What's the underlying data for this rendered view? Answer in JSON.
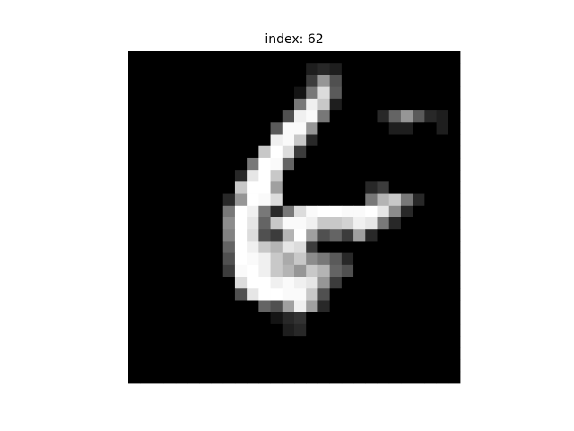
{
  "chart_data": {
    "type": "image",
    "title": "index: 62",
    "colormap": "gray",
    "values": [
      [
        0,
        0,
        0,
        0,
        0,
        0,
        0,
        0,
        0,
        0,
        0,
        0,
        0,
        0,
        0,
        0,
        0,
        0,
        0,
        0,
        0,
        0,
        0,
        0,
        0,
        0,
        0,
        0
      ],
      [
        0,
        0,
        0,
        0,
        0,
        0,
        0,
        0,
        0,
        0,
        0,
        0,
        0,
        0,
        0,
        30,
        40,
        30,
        0,
        0,
        0,
        0,
        0,
        0,
        0,
        0,
        0,
        0
      ],
      [
        0,
        0,
        0,
        0,
        0,
        0,
        0,
        0,
        0,
        0,
        0,
        0,
        0,
        0,
        0,
        60,
        150,
        80,
        0,
        0,
        0,
        0,
        0,
        0,
        0,
        0,
        0,
        0
      ],
      [
        0,
        0,
        0,
        0,
        0,
        0,
        0,
        0,
        0,
        0,
        0,
        0,
        0,
        0,
        20,
        120,
        220,
        90,
        0,
        0,
        0,
        0,
        0,
        0,
        0,
        0,
        0,
        0
      ],
      [
        0,
        0,
        0,
        0,
        0,
        0,
        0,
        0,
        0,
        0,
        0,
        0,
        0,
        0,
        120,
        240,
        200,
        30,
        0,
        0,
        0,
        0,
        0,
        0,
        0,
        0,
        0,
        0
      ],
      [
        0,
        0,
        0,
        0,
        0,
        0,
        0,
        0,
        0,
        0,
        0,
        0,
        0,
        80,
        240,
        250,
        120,
        0,
        0,
        0,
        0,
        40,
        100,
        150,
        90,
        40,
        30,
        0
      ],
      [
        0,
        0,
        0,
        0,
        0,
        0,
        0,
        0,
        0,
        0,
        0,
        0,
        90,
        250,
        250,
        150,
        0,
        0,
        0,
        0,
        0,
        0,
        30,
        30,
        0,
        0,
        30,
        0
      ],
      [
        0,
        0,
        0,
        0,
        0,
        0,
        0,
        0,
        0,
        0,
        0,
        0,
        240,
        250,
        200,
        40,
        0,
        0,
        0,
        0,
        0,
        0,
        0,
        0,
        0,
        0,
        0,
        0
      ],
      [
        0,
        0,
        0,
        0,
        0,
        0,
        0,
        0,
        0,
        0,
        0,
        200,
        255,
        220,
        60,
        0,
        0,
        0,
        0,
        0,
        0,
        0,
        0,
        0,
        0,
        0,
        0,
        0
      ],
      [
        0,
        0,
        0,
        0,
        0,
        0,
        0,
        0,
        0,
        0,
        120,
        255,
        250,
        100,
        0,
        0,
        0,
        0,
        0,
        0,
        0,
        0,
        0,
        0,
        0,
        0,
        0,
        0
      ],
      [
        0,
        0,
        0,
        0,
        0,
        0,
        0,
        0,
        0,
        40,
        230,
        255,
        200,
        0,
        0,
        0,
        0,
        0,
        0,
        0,
        0,
        0,
        0,
        0,
        0,
        0,
        0,
        0
      ],
      [
        0,
        0,
        0,
        0,
        0,
        0,
        0,
        0,
        0,
        200,
        255,
        255,
        160,
        0,
        0,
        0,
        0,
        0,
        0,
        0,
        40,
        60,
        0,
        0,
        0,
        0,
        0,
        0
      ],
      [
        0,
        0,
        0,
        0,
        0,
        0,
        0,
        0,
        40,
        150,
        255,
        250,
        220,
        0,
        0,
        0,
        0,
        0,
        0,
        0,
        120,
        180,
        200,
        120,
        40,
        0,
        0,
        0
      ],
      [
        0,
        0,
        0,
        0,
        0,
        0,
        0,
        0,
        120,
        255,
        240,
        120,
        40,
        120,
        220,
        250,
        255,
        255,
        250,
        250,
        255,
        230,
        140,
        40,
        0,
        0,
        0,
        0
      ],
      [
        0,
        0,
        0,
        0,
        0,
        0,
        0,
        0,
        140,
        255,
        230,
        100,
        200,
        250,
        250,
        240,
        200,
        200,
        210,
        240,
        230,
        120,
        40,
        0,
        0,
        0,
        0,
        0
      ],
      [
        0,
        0,
        0,
        0,
        0,
        0,
        0,
        0,
        130,
        255,
        220,
        80,
        60,
        180,
        255,
        160,
        80,
        100,
        60,
        160,
        40,
        0,
        0,
        0,
        0,
        0,
        0,
        0
      ],
      [
        0,
        0,
        0,
        0,
        0,
        0,
        0,
        0,
        100,
        255,
        240,
        200,
        180,
        230,
        220,
        60,
        0,
        0,
        0,
        0,
        0,
        0,
        0,
        0,
        0,
        0,
        0,
        0
      ],
      [
        0,
        0,
        0,
        0,
        0,
        0,
        0,
        0,
        80,
        255,
        250,
        240,
        200,
        170,
        200,
        140,
        120,
        90,
        40,
        0,
        0,
        0,
        0,
        0,
        0,
        0,
        0,
        0
      ],
      [
        0,
        0,
        0,
        0,
        0,
        0,
        0,
        0,
        60,
        250,
        255,
        240,
        200,
        180,
        150,
        200,
        180,
        100,
        80,
        0,
        0,
        0,
        0,
        0,
        0,
        0,
        0,
        0
      ],
      [
        0,
        0,
        0,
        0,
        0,
        0,
        0,
        0,
        0,
        220,
        255,
        255,
        240,
        250,
        240,
        230,
        150,
        60,
        0,
        0,
        0,
        0,
        0,
        0,
        0,
        0,
        0,
        0
      ],
      [
        0,
        0,
        0,
        0,
        0,
        0,
        0,
        0,
        0,
        80,
        230,
        255,
        255,
        250,
        250,
        200,
        80,
        0,
        0,
        0,
        0,
        0,
        0,
        0,
        0,
        0,
        0,
        0
      ],
      [
        0,
        0,
        0,
        0,
        0,
        0,
        0,
        0,
        0,
        0,
        0,
        100,
        80,
        160,
        240,
        160,
        40,
        0,
        0,
        0,
        0,
        0,
        0,
        0,
        0,
        0,
        0,
        0
      ],
      [
        0,
        0,
        0,
        0,
        0,
        0,
        0,
        0,
        0,
        0,
        0,
        0,
        20,
        40,
        50,
        0,
        0,
        0,
        0,
        0,
        0,
        0,
        0,
        0,
        0,
        0,
        0,
        0
      ],
      [
        0,
        0,
        0,
        0,
        0,
        0,
        0,
        0,
        0,
        0,
        0,
        0,
        0,
        30,
        40,
        0,
        0,
        0,
        0,
        0,
        0,
        0,
        0,
        0,
        0,
        0,
        0,
        0
      ],
      [
        0,
        0,
        0,
        0,
        0,
        0,
        0,
        0,
        0,
        0,
        0,
        0,
        0,
        0,
        0,
        0,
        0,
        0,
        0,
        0,
        0,
        0,
        0,
        0,
        0,
        0,
        0,
        0
      ],
      [
        0,
        0,
        0,
        0,
        0,
        0,
        0,
        0,
        0,
        0,
        0,
        0,
        0,
        0,
        0,
        0,
        0,
        0,
        0,
        0,
        0,
        0,
        0,
        0,
        0,
        0,
        0,
        0
      ],
      [
        0,
        0,
        0,
        0,
        0,
        0,
        0,
        0,
        0,
        0,
        0,
        0,
        0,
        0,
        0,
        0,
        0,
        0,
        0,
        0,
        0,
        0,
        0,
        0,
        0,
        0,
        0,
        0
      ],
      [
        0,
        0,
        0,
        0,
        0,
        0,
        0,
        0,
        0,
        0,
        0,
        0,
        0,
        0,
        0,
        0,
        0,
        0,
        0,
        0,
        0,
        0,
        0,
        0,
        0,
        0,
        0,
        0
      ]
    ]
  }
}
